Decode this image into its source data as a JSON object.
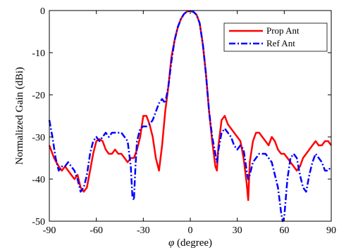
{
  "chart_data": {
    "type": "line",
    "xlabel_symbol": "φ",
    "xlabel_rest": " (degree)",
    "ylabel": "Normalized Gain (dBi)",
    "xlim": [
      -90,
      90
    ],
    "ylim": [
      -50,
      0
    ],
    "xticks": [
      -90,
      -60,
      -30,
      0,
      30,
      60,
      90
    ],
    "yticks": [
      0,
      -10,
      -20,
      -30,
      -40,
      -50
    ],
    "xtick_labels": [
      "-90",
      "-60",
      "-30",
      "0",
      "30",
      "60",
      "90"
    ],
    "ytick_labels": [
      "0",
      "-10",
      "-20",
      "-30",
      "-40",
      "-50"
    ],
    "grid": false,
    "legend_position": "top-right",
    "series": [
      {
        "name": "Prop Ant",
        "color": "#ff0000",
        "style": "solid",
        "x": [
          -90,
          -87,
          -84,
          -82,
          -80,
          -78,
          -76,
          -74,
          -72,
          -70,
          -68,
          -66,
          -64,
          -62,
          -60,
          -58,
          -56,
          -54,
          -52,
          -50,
          -48,
          -46,
          -44,
          -42,
          -40,
          -38,
          -36,
          -34,
          -32,
          -30,
          -28,
          -26,
          -24,
          -22,
          -20,
          -18,
          -16,
          -14,
          -12,
          -10,
          -8,
          -6,
          -4,
          -2,
          0,
          2,
          4,
          6,
          8,
          10,
          12,
          14,
          16,
          17,
          18,
          20,
          22,
          24,
          26,
          28,
          30,
          32,
          34,
          36,
          37,
          38,
          40,
          42,
          44,
          46,
          48,
          50,
          52,
          54,
          56,
          58,
          60,
          62,
          64,
          66,
          68,
          70,
          72,
          74,
          76,
          78,
          80,
          82,
          84,
          86,
          88,
          90
        ],
        "y": [
          -32,
          -35,
          -37,
          -38,
          -37,
          -38,
          -39,
          -40,
          -39,
          -42,
          -43,
          -42,
          -38,
          -34,
          -31,
          -30.5,
          -31,
          -33,
          -34,
          -34,
          -33,
          -34,
          -34,
          -35,
          -36,
          -35,
          -35,
          -33,
          -30,
          -25,
          -25,
          -27,
          -30,
          -35,
          -38,
          -32,
          -24,
          -18,
          -11,
          -7,
          -4,
          -2,
          -0.8,
          -0.2,
          -0.1,
          -0.3,
          -1,
          -3,
          -8,
          -15,
          -24,
          -31,
          -37,
          -38,
          -32,
          -26,
          -25,
          -27,
          -28,
          -29,
          -30,
          -31,
          -35,
          -41,
          -45,
          -36,
          -31,
          -29,
          -29,
          -30,
          -31,
          -32,
          -30,
          -31,
          -33,
          -34,
          -34,
          -35,
          -36,
          -37,
          -38,
          -37,
          -35,
          -34,
          -33,
          -32,
          -31,
          -32,
          -32,
          -31,
          -31,
          -32
        ]
      },
      {
        "name": "Ref Ant",
        "color": "#0000ff",
        "style": "dashdot",
        "x": [
          -90,
          -88,
          -86,
          -84,
          -82,
          -80,
          -78,
          -76,
          -74,
          -72,
          -70,
          -68,
          -66,
          -64,
          -62,
          -60,
          -58,
          -56,
          -54,
          -52,
          -50,
          -48,
          -46,
          -44,
          -42,
          -40,
          -38,
          -37,
          -36,
          -35,
          -34,
          -32,
          -30,
          -28,
          -26,
          -24,
          -22,
          -20,
          -18,
          -16,
          -14,
          -12,
          -10,
          -8,
          -6,
          -4,
          -2,
          0,
          2,
          4,
          6,
          8,
          10,
          12,
          14,
          16,
          17,
          18,
          20,
          22,
          24,
          26,
          28,
          30,
          32,
          34,
          36,
          37,
          38,
          40,
          42,
          44,
          46,
          48,
          50,
          52,
          54,
          56,
          58,
          59,
          60,
          62,
          64,
          66,
          68,
          70,
          72,
          74,
          76,
          78,
          80,
          82,
          84,
          86,
          88,
          90
        ],
        "y": [
          -26,
          -30,
          -35,
          -38,
          -37,
          -37,
          -36,
          -37,
          -38,
          -40,
          -43,
          -42,
          -39,
          -34,
          -31,
          -30,
          -31,
          -30,
          -29,
          -30,
          -29,
          -29,
          -29,
          -29,
          -30,
          -31,
          -37,
          -44,
          -45,
          -37,
          -31,
          -28,
          -27.5,
          -27.5,
          -27,
          -26,
          -24,
          -22,
          -21,
          -22,
          -18,
          -12,
          -7,
          -4,
          -2,
          -0.8,
          -0.2,
          -0.1,
          -0.3,
          -1,
          -3,
          -8,
          -15,
          -24,
          -30,
          -34,
          -36,
          -33,
          -29,
          -28,
          -29,
          -30,
          -32,
          -33,
          -32,
          -33,
          -38,
          -40,
          -39,
          -36,
          -35,
          -34,
          -34,
          -34,
          -35,
          -36,
          -39,
          -42,
          -48,
          -52,
          -49,
          -40,
          -35,
          -34,
          -35,
          -39,
          -42,
          -43,
          -39,
          -36,
          -34,
          -35,
          -36,
          -38,
          -38,
          -37
        ]
      }
    ]
  }
}
